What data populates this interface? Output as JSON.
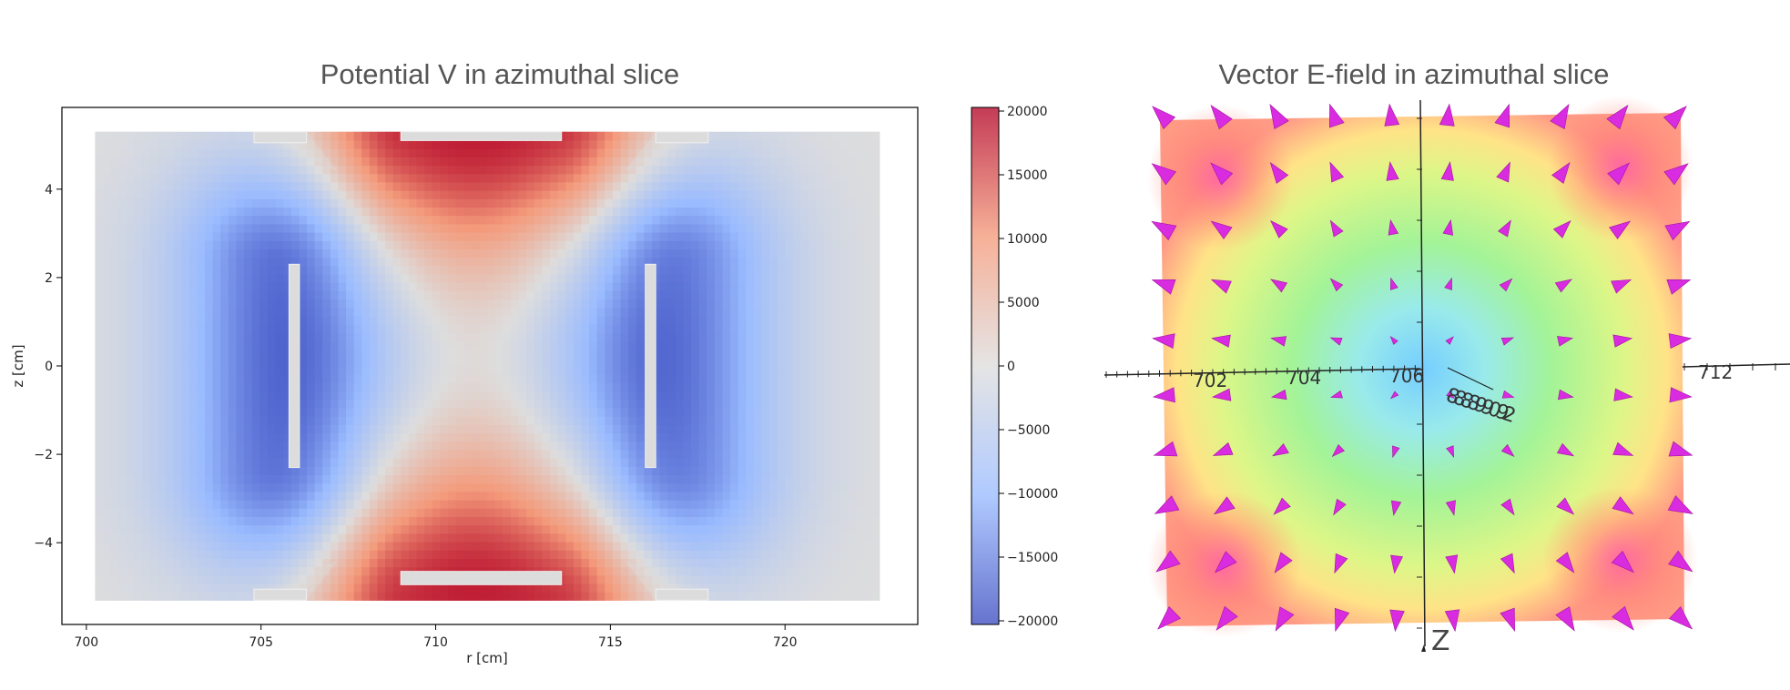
{
  "chart_data": [
    {
      "type": "heatmap",
      "title": "Potential V in azimuthal slice",
      "xlabel": "r [cm]",
      "ylabel": "z [cm]",
      "xlim": [
        699.3,
        723.8
      ],
      "ylim": [
        -5.85,
        5.85
      ],
      "xticks": [
        700,
        705,
        710,
        715,
        720
      ],
      "yticks": [
        -4,
        -2,
        0,
        2,
        4
      ],
      "domain": {
        "r": [
          700.25,
          722.7
        ],
        "z": [
          -5.3,
          5.3
        ]
      },
      "electrodes": [
        {
          "r": [
            705.8,
            706.1
          ],
          "z": [
            -2.3,
            2.3
          ],
          "v": -20000
        },
        {
          "r": [
            716.0,
            716.3
          ],
          "z": [
            -2.3,
            2.3
          ],
          "v": -20000
        },
        {
          "r": [
            709.0,
            713.6
          ],
          "z": [
            -4.95,
            -4.65
          ],
          "v": 20000
        },
        {
          "r": [
            709.0,
            713.6
          ],
          "z": [
            5.1,
            5.3
          ],
          "v": 20000
        },
        {
          "r": [
            704.8,
            706.3
          ],
          "z": [
            -5.3,
            -5.05
          ],
          "v": 0
        },
        {
          "r": [
            716.3,
            717.8
          ],
          "z": [
            -5.3,
            -5.05
          ],
          "v": 0
        },
        {
          "r": [
            704.8,
            706.3
          ],
          "z": [
            5.05,
            5.3
          ],
          "v": 0
        },
        {
          "r": [
            716.3,
            717.8
          ],
          "z": [
            5.05,
            5.3
          ],
          "v": 0
        }
      ],
      "colorbar": {
        "range": [
          -20000,
          20000
        ],
        "ticks": [
          20000,
          15000,
          10000,
          5000,
          0,
          -5000,
          -10000,
          -15000,
          -20000
        ],
        "tick_labels": [
          "20000",
          "15000",
          "10000",
          "5000",
          "0",
          "−5000",
          "−10000",
          "−15000",
          "−20000"
        ],
        "colormap": "coolwarm"
      }
    },
    {
      "type": "scatter",
      "title": "Vector E-field in azimuthal slice",
      "xlim": [
        700,
        713.5
      ],
      "ylim": [
        -5.5,
        5.5
      ],
      "axis_labels": [
        "702",
        "704",
        "706",
        "712"
      ],
      "z_axis_label": "Z",
      "clutter_text": "8888990 92",
      "glyph_color": "#d92be0",
      "grid": {
        "nx": 10,
        "nz": 10
      }
    }
  ]
}
